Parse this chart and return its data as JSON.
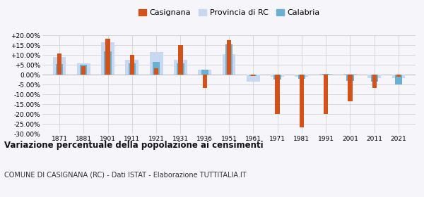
{
  "years": [
    1871,
    1881,
    1901,
    1911,
    1921,
    1931,
    1936,
    1951,
    1961,
    1971,
    1981,
    1991,
    2001,
    2011,
    2021
  ],
  "casignana": [
    11.0,
    4.5,
    18.5,
    10.0,
    3.5,
    15.0,
    -6.5,
    17.5,
    -0.5,
    -20.0,
    -26.5,
    -20.0,
    -13.5,
    -6.5,
    -1.0
  ],
  "provincia_rc": [
    9.0,
    6.0,
    16.5,
    7.5,
    11.5,
    7.5,
    2.5,
    10.5,
    -3.5,
    -1.0,
    -1.0,
    0.5,
    0.5,
    -1.5,
    -1.5
  ],
  "calabria": [
    5.5,
    5.0,
    12.0,
    6.0,
    6.5,
    6.0,
    2.5,
    15.5,
    -0.5,
    -2.5,
    -2.0,
    0.5,
    -3.0,
    -3.5,
    -5.0
  ],
  "casignana_color": "#d2521a",
  "provincia_rc_color": "#c8d8f0",
  "calabria_color": "#6ab0d0",
  "ylim": [
    -30,
    20
  ],
  "yticks": [
    -30,
    -25,
    -20,
    -15,
    -10,
    -5,
    0,
    5,
    10,
    15,
    20
  ],
  "title": "Variazione percentuale della popolazione ai censimenti",
  "subtitle": "COMUNE DI CASIGNANA (RC) - Dati ISTAT - Elaborazione TUTTITALIA.IT",
  "legend_labels": [
    "Casignana",
    "Provincia di RC",
    "Calabria"
  ],
  "background_color": "#f5f5fa"
}
